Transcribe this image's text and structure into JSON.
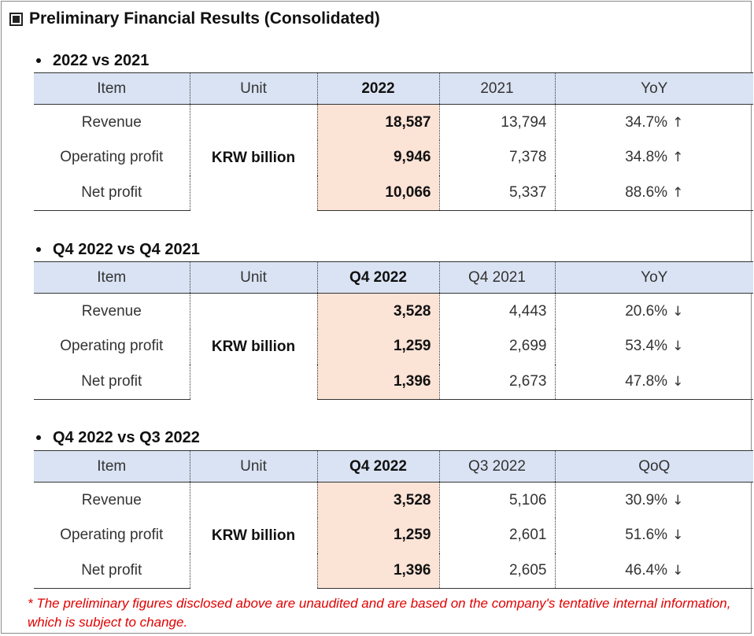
{
  "title": "Preliminary Financial Results (Consolidated)",
  "sections": [
    {
      "heading": "2022 vs 2021",
      "headers": [
        "Item",
        "Unit",
        "2022",
        "2021",
        "YoY"
      ],
      "unit": "KRW billion",
      "rows": [
        {
          "item": "Revenue",
          "current": "18,587",
          "previous": "13,794",
          "change": "34.7%",
          "arrow": "↑"
        },
        {
          "item": "Operating profit",
          "current": "9,946",
          "previous": "7,378",
          "change": "34.8%",
          "arrow": "↑"
        },
        {
          "item": "Net profit",
          "current": "10,066",
          "previous": "5,337",
          "change": "88.6%",
          "arrow": "↑"
        }
      ]
    },
    {
      "heading": "Q4 2022 vs Q4 2021",
      "headers": [
        "Item",
        "Unit",
        "Q4 2022",
        "Q4 2021",
        "YoY"
      ],
      "unit": "KRW billion",
      "rows": [
        {
          "item": "Revenue",
          "current": "3,528",
          "previous": "4,443",
          "change": "20.6%",
          "arrow": "↓"
        },
        {
          "item": "Operating profit",
          "current": "1,259",
          "previous": "2,699",
          "change": "53.4%",
          "arrow": "↓"
        },
        {
          "item": "Net profit",
          "current": "1,396",
          "previous": "2,673",
          "change": "47.8%",
          "arrow": "↓"
        }
      ]
    },
    {
      "heading": "Q4 2022 vs Q3 2022",
      "headers": [
        "Item",
        "Unit",
        "Q4 2022",
        "Q3 2022",
        "QoQ"
      ],
      "unit": "KRW billion",
      "rows": [
        {
          "item": "Revenue",
          "current": "3,528",
          "previous": "5,106",
          "change": "30.9%",
          "arrow": "↓"
        },
        {
          "item": "Operating profit",
          "current": "1,259",
          "previous": "2,601",
          "change": "51.6%",
          "arrow": "↓"
        },
        {
          "item": "Net profit",
          "current": "1,396",
          "previous": "2,605",
          "change": "46.4%",
          "arrow": "↓"
        }
      ]
    }
  ],
  "footnote": "* The preliminary figures disclosed above are unaudited and are based on the company's tentative internal information, which is subject to change."
}
